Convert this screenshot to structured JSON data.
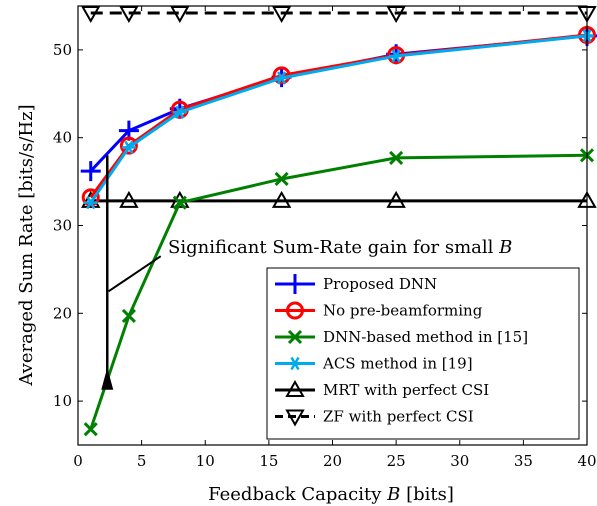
{
  "chart_data": {
    "type": "line",
    "xlabel": "Feedback Capacity B [bits]",
    "ylabel": "Averaged Sum Rate [bits/s/Hz]",
    "xlim": [
      0,
      40
    ],
    "ylim": [
      5,
      55
    ],
    "xticks": [
      0,
      5,
      10,
      15,
      20,
      25,
      30,
      35,
      40
    ],
    "yticks": [
      10,
      20,
      30,
      40,
      50
    ],
    "grid": false,
    "legend_position": "bottom-right",
    "series": [
      {
        "name": "Proposed DNN",
        "color": "#0000ff",
        "marker": "plus",
        "dashed": false,
        "x": [
          1,
          4,
          8,
          16,
          25,
          40
        ],
        "y": [
          36.2,
          40.8,
          43.3,
          46.9,
          49.5,
          51.6
        ]
      },
      {
        "name": "No pre-beamforming",
        "color": "#ff0000",
        "marker": "circle",
        "dashed": false,
        "x": [
          1,
          4,
          8,
          16,
          25,
          40
        ],
        "y": [
          33.2,
          39.1,
          43.2,
          47.1,
          49.4,
          51.7
        ]
      },
      {
        "name": "DNN-based method in [15]",
        "color": "#008000",
        "marker": "x",
        "dashed": false,
        "x": [
          1,
          4,
          8,
          16,
          25,
          40
        ],
        "y": [
          6.8,
          19.7,
          32.6,
          35.3,
          37.7,
          38.0
        ]
      },
      {
        "name": "ACS method in [19]",
        "color": "#00aaee",
        "marker": "star",
        "dashed": false,
        "x": [
          1,
          4,
          8,
          16,
          25,
          40
        ],
        "y": [
          32.6,
          38.9,
          42.9,
          46.8,
          49.3,
          51.6
        ]
      },
      {
        "name": "MRT with perfect CSI",
        "color": "#000000",
        "marker": "triangle-up",
        "dashed": false,
        "x": [
          1,
          4,
          8,
          16,
          25,
          40
        ],
        "y": [
          32.8,
          32.8,
          32.8,
          32.8,
          32.8,
          32.8
        ]
      },
      {
        "name": "ZF with perfect CSI",
        "color": "#000000",
        "marker": "triangle-down",
        "dashed": true,
        "x": [
          1,
          4,
          8,
          16,
          25,
          40
        ],
        "y": [
          54.2,
          54.2,
          54.2,
          54.2,
          54.2,
          54.2
        ]
      }
    ],
    "annotation": {
      "text_prefix": "Significant Sum-Rate gain for small ",
      "text_var": "B",
      "arrow": {
        "x": 2.3,
        "y_from": 38.0,
        "y_to": 13.8
      },
      "pointer": [
        {
          "x": 2.4,
          "y": 22.5
        },
        {
          "x": 6.5,
          "y": 26.5
        }
      ]
    }
  }
}
